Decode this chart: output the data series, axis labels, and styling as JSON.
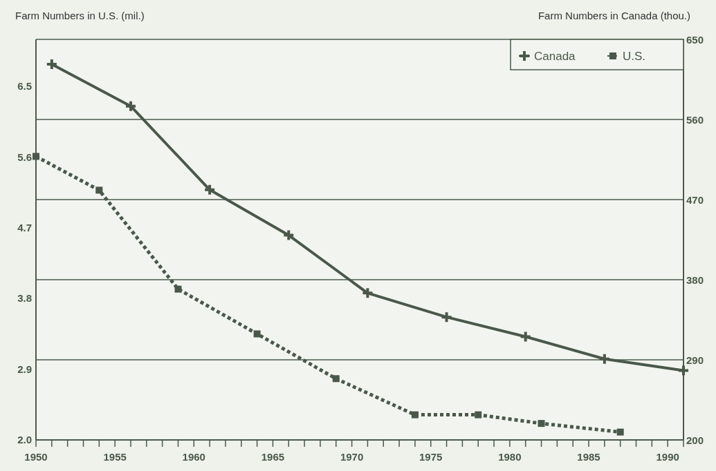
{
  "chart_data": {
    "type": "line",
    "ylabel": "Farm Numbers in U.S. (mil.)",
    "y2label": "Farm Numbers in Canada (thou.)",
    "xlim": [
      1950,
      1991
    ],
    "xticks": [
      1950,
      {
        "value": 1951,
        "label": null
      },
      {
        "value": 1952,
        "label": null
      },
      {
        "value": 1953,
        "label": null
      },
      {
        "value": 1954,
        "label": null
      },
      1955,
      {
        "value": 1956,
        "label": null
      },
      {
        "value": 1957,
        "label": null
      },
      {
        "value": 1958,
        "label": null
      },
      {
        "value": 1959,
        "label": null
      },
      1960,
      {
        "value": 1961,
        "label": null
      },
      {
        "value": 1962,
        "label": null
      },
      {
        "value": 1963,
        "label": null
      },
      {
        "value": 1964,
        "label": null
      },
      1965,
      {
        "value": 1966,
        "label": null
      },
      {
        "value": 1967,
        "label": null
      },
      {
        "value": 1968,
        "label": null
      },
      {
        "value": 1969,
        "label": null
      },
      1970,
      {
        "value": 1971,
        "label": null
      },
      {
        "value": 1972,
        "label": null
      },
      {
        "value": 1973,
        "label": null
      },
      {
        "value": 1974,
        "label": null
      },
      1975,
      {
        "value": 1976,
        "label": null
      },
      {
        "value": 1977,
        "label": null
      },
      {
        "value": 1978,
        "label": null
      },
      {
        "value": 1979,
        "label": null
      },
      1980,
      {
        "value": 1981,
        "label": null
      },
      {
        "value": 1982,
        "label": null
      },
      {
        "value": 1983,
        "label": null
      },
      {
        "value": 1984,
        "label": null
      },
      1985,
      {
        "value": 1986,
        "label": null
      },
      {
        "value": 1987,
        "label": null
      },
      {
        "value": 1988,
        "label": null
      },
      {
        "value": 1989,
        "label": null
      },
      1990,
      {
        "value": 1991,
        "label": null
      }
    ],
    "ylim": [
      2.0,
      7.1
    ],
    "yticks": [
      {
        "value": 2.0,
        "label": "2.0"
      },
      2.9,
      3.8,
      4.7,
      5.6,
      6.5
    ],
    "y2lim": [
      200,
      650
    ],
    "y2ticks": [
      200,
      290,
      380,
      470,
      560,
      650
    ],
    "grid": true,
    "legend": "top right",
    "series": [
      {
        "name": "Canada",
        "color": "#4a584a",
        "axis": "y2",
        "marker": "cross",
        "line_style": "solid",
        "x": [
          1951,
          1956,
          1961,
          1966,
          1971,
          1976,
          1981,
          1986,
          1991
        ],
        "values": [
          622,
          575,
          481,
          430,
          365,
          338,
          316,
          291,
          278
        ]
      },
      {
        "name": "U.S.",
        "color": "#4a584a",
        "marker": "square",
        "line_style": "dotted",
        "x": [
          1950,
          1954,
          1959,
          1964,
          1969,
          1974,
          1978,
          1982,
          1987
        ],
        "values": [
          5.61,
          5.18,
          3.92,
          3.35,
          2.78,
          2.32,
          2.32,
          2.21,
          2.1
        ]
      }
    ]
  }
}
